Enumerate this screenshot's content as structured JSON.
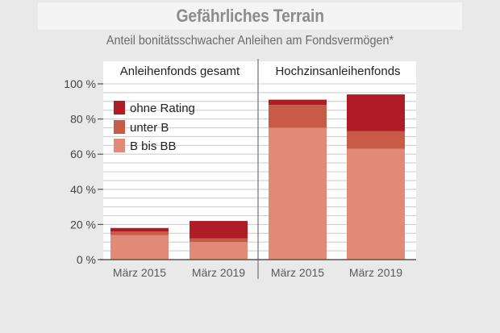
{
  "title": "Gefährliches Terrain",
  "subtitle": "Anteil bonitätsschwacher Anleihen am Fondsvermögen*",
  "colors": {
    "ohne_rating": "#b01c25",
    "unter_b": "#c85a48",
    "b_bis_bb": "#e28a78",
    "panel": "#ffffff",
    "grid": "#cfcfcf",
    "axis": "#555555",
    "tick_text": "#5a5a5a",
    "divider": "#8a8a8a"
  },
  "chart_data": {
    "type": "bar",
    "stacked": true,
    "ylim": [
      0,
      100
    ],
    "yticks": [
      0,
      20,
      40,
      60,
      80,
      100
    ],
    "ytick_labels": [
      "0 %",
      "20 %",
      "40 %",
      "60 %",
      "80 %",
      "100 %"
    ],
    "grid": true,
    "legend": {
      "position": "top-left",
      "entries": [
        "ohne Rating",
        "unter B",
        "B bis BB"
      ]
    },
    "panels": [
      {
        "label": "Anleihenfonds gesamt",
        "categories": [
          "März 2015",
          "März 2019"
        ],
        "series": [
          {
            "name": "B bis BB",
            "values": [
              14,
              10
            ]
          },
          {
            "name": "unter B",
            "values": [
              2,
              2
            ]
          },
          {
            "name": "ohne Rating",
            "values": [
              2,
              10
            ]
          }
        ]
      },
      {
        "label": "Hochzinsanleihenfonds",
        "categories": [
          "März 2015",
          "März 2019"
        ],
        "series": [
          {
            "name": "B bis BB",
            "values": [
              75,
              63
            ]
          },
          {
            "name": "unter B",
            "values": [
              13,
              10
            ]
          },
          {
            "name": "ohne Rating",
            "values": [
              3,
              21
            ]
          }
        ]
      }
    ]
  }
}
